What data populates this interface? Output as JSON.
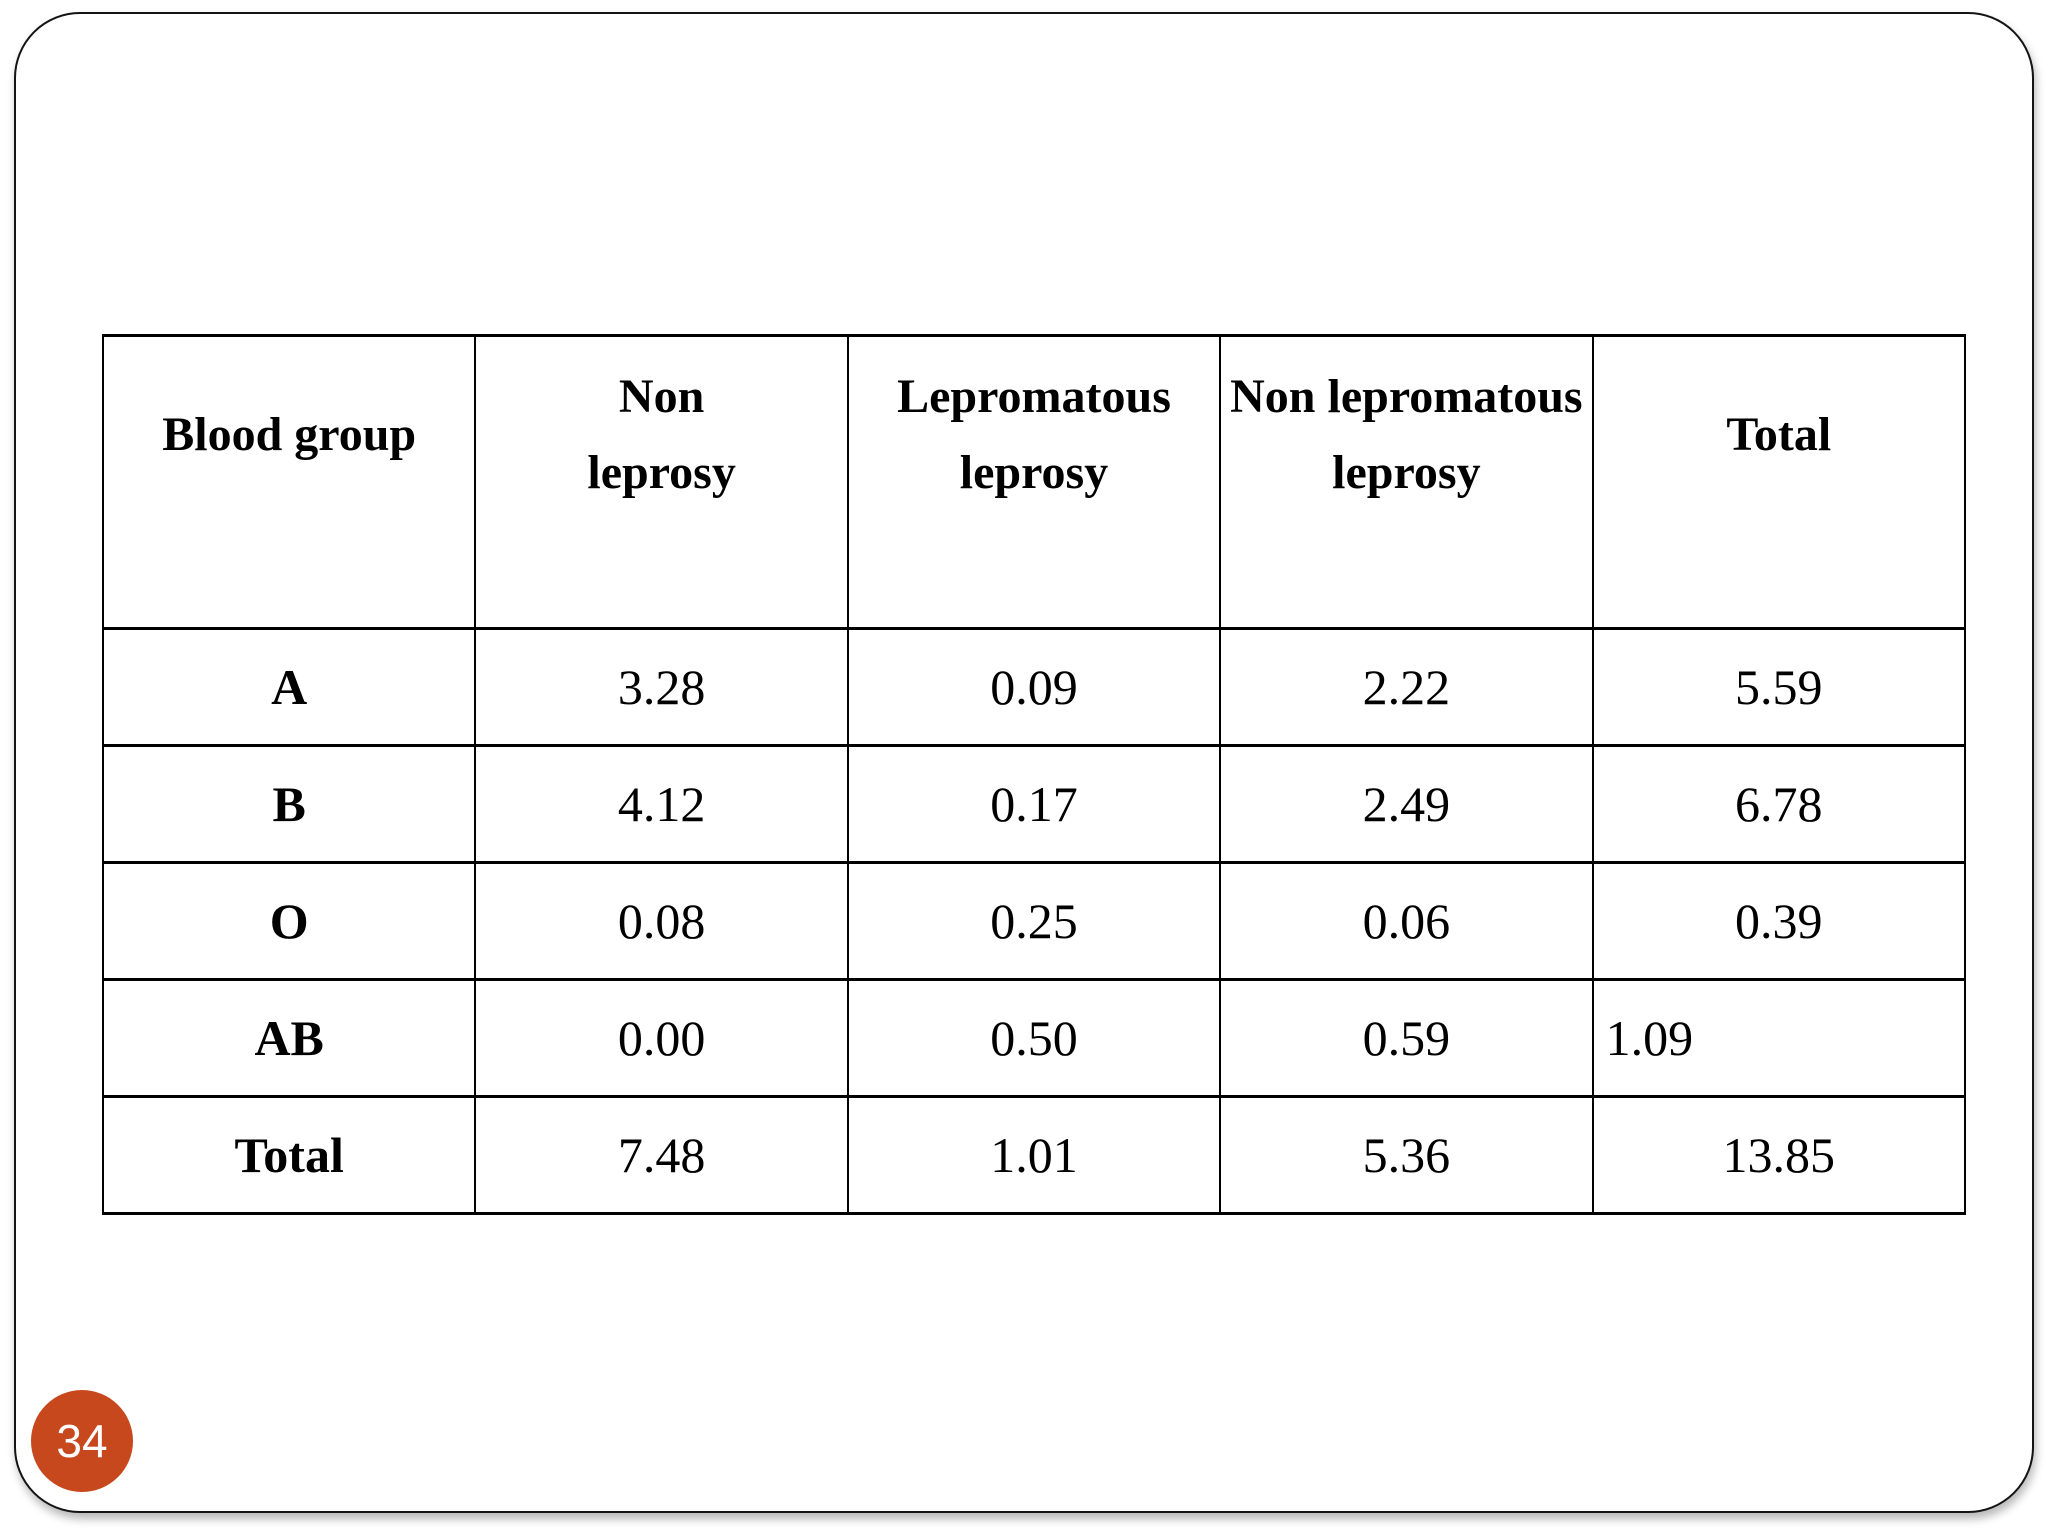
{
  "slide": {
    "page_number": "34"
  },
  "colors": {
    "badge_background": "#C8481E",
    "table_border": "#000000",
    "text": "#000000"
  },
  "table": {
    "headers": [
      {
        "line1": "Blood group"
      },
      {
        "line1": "Non",
        "line2": "leprosy"
      },
      {
        "line1": "Lepromatous",
        "line2": "leprosy"
      },
      {
        "line1": "Non lepromatous",
        "line2": "leprosy"
      },
      {
        "line1": "Total"
      }
    ],
    "rows": [
      {
        "label": "A",
        "values": [
          "3.28",
          "0.09",
          "2.22",
          "5.59"
        ]
      },
      {
        "label": "B",
        "values": [
          "4.12",
          "0.17",
          "2.49",
          "6.78"
        ]
      },
      {
        "label": "O",
        "values": [
          "0.08",
          "0.25",
          "0.06",
          "0.39"
        ]
      },
      {
        "label": "AB",
        "values": [
          "0.00",
          "0.50",
          "0.59",
          "1.09"
        ]
      },
      {
        "label": "Total",
        "values": [
          "7.48",
          "1.01",
          "5.36",
          "13.85"
        ]
      }
    ]
  }
}
